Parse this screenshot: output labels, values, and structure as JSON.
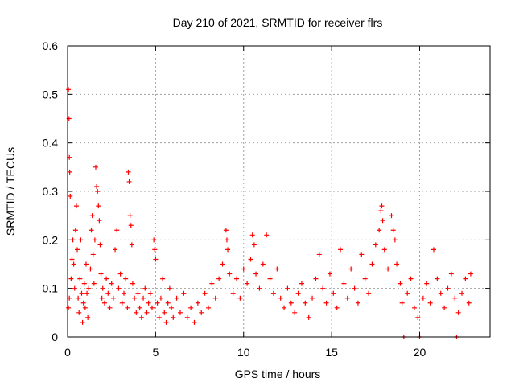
{
  "chart_data": {
    "type": "scatter",
    "title": "Day 210 of 2021, SRMTID for receiver flrs",
    "xlabel": "GPS time / hours",
    "ylabel": "SRMTID / TECUs",
    "xlim": [
      0,
      24
    ],
    "ylim": [
      0,
      0.6
    ],
    "xticks": [
      0,
      5,
      10,
      15,
      20
    ],
    "yticks": [
      0,
      0.1,
      0.2,
      0.3,
      0.4,
      0.5,
      0.6
    ],
    "xtick_labels": [
      "0",
      "5",
      "10",
      "15",
      "20"
    ],
    "ytick_labels": [
      "0",
      "0.1",
      "0.2",
      "0.3",
      "0.4",
      "0.5",
      "0.6"
    ],
    "grid": true,
    "marker": "plus",
    "series": [
      {
        "name": "SRMTID",
        "color": "#ff0000",
        "points": [
          [
            0.05,
            0.51
          ],
          [
            0.08,
            0.45
          ],
          [
            0.1,
            0.37
          ],
          [
            0.12,
            0.34
          ],
          [
            0.15,
            0.29
          ],
          [
            0.05,
            0.06
          ],
          [
            0.1,
            0.08
          ],
          [
            0.2,
            0.12
          ],
          [
            0.25,
            0.16
          ],
          [
            0.3,
            0.2
          ],
          [
            0.35,
            0.15
          ],
          [
            0.4,
            0.1
          ],
          [
            0.45,
            0.22
          ],
          [
            0.5,
            0.27
          ],
          [
            0.55,
            0.18
          ],
          [
            0.6,
            0.08
          ],
          [
            0.65,
            0.05
          ],
          [
            0.7,
            0.12
          ],
          [
            0.75,
            0.2
          ],
          [
            0.8,
            0.09
          ],
          [
            0.85,
            0.03
          ],
          [
            0.9,
            0.07
          ],
          [
            0.95,
            0.11
          ],
          [
            1.0,
            0.06
          ],
          [
            1.05,
            0.15
          ],
          [
            1.1,
            0.09
          ],
          [
            1.15,
            0.04
          ],
          [
            1.2,
            0.1
          ],
          [
            1.3,
            0.14
          ],
          [
            1.35,
            0.22
          ],
          [
            1.4,
            0.25
          ],
          [
            1.45,
            0.17
          ],
          [
            1.5,
            0.11
          ],
          [
            1.55,
            0.2
          ],
          [
            1.6,
            0.35
          ],
          [
            1.65,
            0.31
          ],
          [
            1.7,
            0.3
          ],
          [
            1.75,
            0.27
          ],
          [
            1.8,
            0.24
          ],
          [
            1.85,
            0.19
          ],
          [
            1.9,
            0.13
          ],
          [
            1.95,
            0.08
          ],
          [
            2.0,
            0.1
          ],
          [
            2.1,
            0.07
          ],
          [
            2.2,
            0.12
          ],
          [
            2.3,
            0.09
          ],
          [
            2.4,
            0.06
          ],
          [
            2.5,
            0.11
          ],
          [
            2.6,
            0.08
          ],
          [
            2.7,
            0.18
          ],
          [
            2.8,
            0.22
          ],
          [
            2.9,
            0.1
          ],
          [
            3.0,
            0.13
          ],
          [
            3.1,
            0.07
          ],
          [
            3.2,
            0.09
          ],
          [
            3.3,
            0.12
          ],
          [
            3.4,
            0.06
          ],
          [
            3.45,
            0.34
          ],
          [
            3.5,
            0.32
          ],
          [
            3.55,
            0.25
          ],
          [
            3.6,
            0.23
          ],
          [
            3.65,
            0.19
          ],
          [
            3.7,
            0.11
          ],
          [
            3.8,
            0.08
          ],
          [
            3.9,
            0.05
          ],
          [
            4.0,
            0.09
          ],
          [
            4.1,
            0.06
          ],
          [
            4.2,
            0.04
          ],
          [
            4.3,
            0.08
          ],
          [
            4.4,
            0.1
          ],
          [
            4.5,
            0.05
          ],
          [
            4.6,
            0.07
          ],
          [
            4.7,
            0.09
          ],
          [
            4.8,
            0.06
          ],
          [
            4.9,
            0.2
          ],
          [
            4.95,
            0.18
          ],
          [
            5.0,
            0.16
          ],
          [
            5.1,
            0.07
          ],
          [
            5.2,
            0.04
          ],
          [
            5.3,
            0.08
          ],
          [
            5.4,
            0.12
          ],
          [
            5.5,
            0.05
          ],
          [
            5.6,
            0.03
          ],
          [
            5.7,
            0.07
          ],
          [
            5.8,
            0.1
          ],
          [
            5.9,
            0.06
          ],
          [
            6.0,
            0.04
          ],
          [
            6.2,
            0.08
          ],
          [
            6.4,
            0.05
          ],
          [
            6.6,
            0.09
          ],
          [
            6.8,
            0.04
          ],
          [
            7.0,
            0.06
          ],
          [
            7.2,
            0.03
          ],
          [
            7.4,
            0.07
          ],
          [
            7.6,
            0.05
          ],
          [
            7.8,
            0.09
          ],
          [
            8.0,
            0.06
          ],
          [
            8.2,
            0.11
          ],
          [
            8.4,
            0.08
          ],
          [
            8.6,
            0.12
          ],
          [
            8.8,
            0.15
          ],
          [
            9.0,
            0.22
          ],
          [
            9.05,
            0.2
          ],
          [
            9.1,
            0.18
          ],
          [
            9.2,
            0.13
          ],
          [
            9.4,
            0.09
          ],
          [
            9.6,
            0.12
          ],
          [
            9.8,
            0.08
          ],
          [
            10.0,
            0.14
          ],
          [
            10.2,
            0.11
          ],
          [
            10.4,
            0.16
          ],
          [
            10.5,
            0.21
          ],
          [
            10.6,
            0.19
          ],
          [
            10.7,
            0.13
          ],
          [
            10.9,
            0.1
          ],
          [
            11.1,
            0.15
          ],
          [
            11.3,
            0.21
          ],
          [
            11.5,
            0.12
          ],
          [
            11.7,
            0.09
          ],
          [
            11.9,
            0.14
          ],
          [
            12.1,
            0.08
          ],
          [
            12.3,
            0.06
          ],
          [
            12.5,
            0.1
          ],
          [
            12.7,
            0.07
          ],
          [
            12.9,
            0.05
          ],
          [
            13.1,
            0.09
          ],
          [
            13.3,
            0.11
          ],
          [
            13.5,
            0.07
          ],
          [
            13.7,
            0.04
          ],
          [
            13.9,
            0.08
          ],
          [
            14.1,
            0.12
          ],
          [
            14.3,
            0.17
          ],
          [
            14.5,
            0.1
          ],
          [
            14.7,
            0.07
          ],
          [
            14.9,
            0.13
          ],
          [
            15.1,
            0.09
          ],
          [
            15.3,
            0.06
          ],
          [
            15.5,
            0.18
          ],
          [
            15.7,
            0.11
          ],
          [
            15.9,
            0.08
          ],
          [
            16.1,
            0.14
          ],
          [
            16.3,
            0.1
          ],
          [
            16.5,
            0.07
          ],
          [
            16.7,
            0.17
          ],
          [
            16.9,
            0.12
          ],
          [
            17.1,
            0.09
          ],
          [
            17.3,
            0.15
          ],
          [
            17.5,
            0.19
          ],
          [
            17.7,
            0.22
          ],
          [
            17.8,
            0.26
          ],
          [
            17.85,
            0.27
          ],
          [
            17.9,
            0.24
          ],
          [
            18.0,
            0.18
          ],
          [
            18.2,
            0.14
          ],
          [
            18.4,
            0.25
          ],
          [
            18.5,
            0.22
          ],
          [
            18.6,
            0.2
          ],
          [
            18.7,
            0.15
          ],
          [
            18.9,
            0.11
          ],
          [
            19.0,
            0.07
          ],
          [
            19.1,
            0.0
          ],
          [
            19.3,
            0.09
          ],
          [
            19.5,
            0.12
          ],
          [
            19.7,
            0.06
          ],
          [
            19.9,
            0.04
          ],
          [
            20.0,
            0.0
          ],
          [
            20.2,
            0.08
          ],
          [
            20.4,
            0.11
          ],
          [
            20.6,
            0.07
          ],
          [
            20.8,
            0.18
          ],
          [
            21.0,
            0.12
          ],
          [
            21.2,
            0.09
          ],
          [
            21.4,
            0.06
          ],
          [
            21.6,
            0.1
          ],
          [
            21.8,
            0.13
          ],
          [
            22.0,
            0.08
          ],
          [
            22.1,
            0.0
          ],
          [
            22.2,
            0.05
          ],
          [
            22.4,
            0.09
          ],
          [
            22.6,
            0.12
          ],
          [
            22.8,
            0.07
          ],
          [
            22.9,
            0.13
          ]
        ]
      }
    ]
  }
}
